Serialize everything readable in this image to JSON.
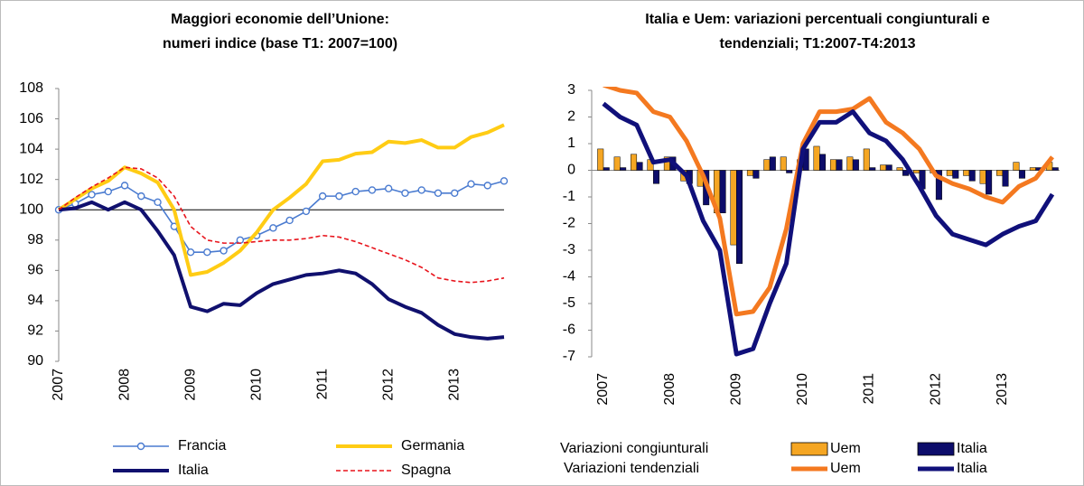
{
  "chart_data": [
    {
      "type": "line",
      "title": [
        "Maggiori economie dell’Unione:",
        "numeri indice (base T1: 2007=100)"
      ],
      "categories": [
        "2007",
        null,
        null,
        null,
        "2008",
        null,
        null,
        null,
        "2009",
        null,
        null,
        null,
        "2010",
        null,
        null,
        null,
        "2011",
        null,
        null,
        null,
        "2012",
        null,
        null,
        null,
        "2013",
        null,
        null,
        null
      ],
      "ylim": [
        90,
        108
      ],
      "yticks": [
        90,
        92,
        94,
        96,
        98,
        100,
        102,
        104,
        106,
        108
      ],
      "hline": 100,
      "series": [
        {
          "name": "Francia",
          "color": "#4a7bd0",
          "marker": "circle",
          "values": [
            100,
            100.4,
            101,
            101.2,
            101.6,
            100.9,
            100.5,
            98.9,
            97.2,
            97.2,
            97.3,
            98.0,
            98.3,
            98.8,
            99.3,
            99.9,
            100.9,
            100.9,
            101.2,
            101.3,
            101.4,
            101.1,
            101.3,
            101.1,
            101.1,
            101.7,
            101.6,
            101.9
          ]
        },
        {
          "name": "Germania",
          "color": "#ffcc14",
          "values": [
            100,
            100.7,
            101.4,
            101.9,
            102.8,
            102.4,
            101.8,
            100,
            95.7,
            95.9,
            96.5,
            97.3,
            98.5,
            100,
            100.8,
            101.7,
            103.2,
            103.3,
            103.7,
            103.8,
            104.5,
            104.4,
            104.6,
            104.1,
            104.1,
            104.8,
            105.1,
            105.6
          ]
        },
        {
          "name": "Italia",
          "color": "#10106e",
          "values": [
            100,
            100.1,
            100.5,
            100,
            100.5,
            100,
            98.6,
            97,
            93.6,
            93.3,
            93.8,
            93.7,
            94.5,
            95.1,
            95.4,
            95.7,
            95.8,
            96.0,
            95.8,
            95.1,
            94.1,
            93.6,
            93.2,
            92.4,
            91.8,
            91.6,
            91.5,
            91.6
          ]
        },
        {
          "name": "Spagna",
          "color": "#e8141c",
          "dash": true,
          "values": [
            100,
            100.8,
            101.5,
            102.1,
            102.8,
            102.7,
            102.1,
            100.9,
            98.9,
            98.0,
            97.8,
            97.8,
            97.9,
            98.0,
            98.0,
            98.1,
            98.3,
            98.2,
            97.9,
            97.5,
            97.1,
            96.7,
            96.2,
            95.5,
            95.3,
            95.2,
            95.3,
            95.5
          ]
        }
      ]
    },
    {
      "type": "combo",
      "title": [
        "Italia e Uem: variazioni percentuali congiunturali e",
        "tendenziali; T1:2007-T4:2013"
      ],
      "categories": [
        "2007",
        null,
        null,
        null,
        "2008",
        null,
        null,
        null,
        "2009",
        null,
        null,
        null,
        "2010",
        null,
        null,
        null,
        "2011",
        null,
        null,
        null,
        "2012",
        null,
        null,
        null,
        "2013",
        null,
        null,
        null
      ],
      "ylim": [
        -7,
        3
      ],
      "yticks": [
        -7,
        -6,
        -5,
        -4,
        -3,
        -2,
        -1,
        0,
        1,
        2,
        3
      ],
      "legend_rows": [
        "Variazioni congiunturali",
        "Variazioni tendenziali"
      ],
      "series": [
        {
          "name": "Uem",
          "kind": "bar",
          "color": "#f5a623",
          "values": [
            0.8,
            0.5,
            0.6,
            0.4,
            0.5,
            -0.4,
            -0.6,
            -1.6,
            -2.8,
            -0.2,
            0.4,
            0.5,
            0.4,
            0.9,
            0.4,
            0.5,
            0.8,
            0.2,
            0.1,
            -0.1,
            -0.1,
            -0.2,
            -0.2,
            -0.5,
            -0.2,
            0.3,
            0.1,
            0.3
          ]
        },
        {
          "name": "Italia",
          "kind": "bar",
          "color": "#0d0d6b",
          "values": [
            0.1,
            0.1,
            0.3,
            -0.5,
            0.5,
            -0.5,
            -1.3,
            -1.6,
            -3.5,
            -0.3,
            0.5,
            -0.1,
            0.8,
            0.6,
            0.4,
            0.4,
            0.1,
            0.2,
            -0.2,
            -0.7,
            -1.1,
            -0.3,
            -0.4,
            -0.9,
            -0.6,
            -0.3,
            0.1,
            0.1
          ]
        },
        {
          "name": "Uem",
          "kind": "line",
          "color": "#f47920",
          "values": [
            3.2,
            3.0,
            2.9,
            2.2,
            2.0,
            1.1,
            -0.2,
            -1.8,
            -5.4,
            -5.3,
            -4.4,
            -2.2,
            1.0,
            2.2,
            2.2,
            2.3,
            2.7,
            1.8,
            1.4,
            0.8,
            -0.2,
            -0.5,
            -0.7,
            -1.0,
            -1.2,
            -0.6,
            -0.3,
            0.5
          ]
        },
        {
          "name": "Italia",
          "kind": "line",
          "color": "#10107a",
          "values": [
            2.5,
            2.0,
            1.7,
            0.3,
            0.4,
            -0.2,
            -1.9,
            -3.0,
            -6.9,
            -6.7,
            -5.0,
            -3.5,
            0.8,
            1.8,
            1.8,
            2.2,
            1.4,
            1.1,
            0.4,
            -0.6,
            -1.7,
            -2.4,
            -2.6,
            -2.8,
            -2.4,
            -2.1,
            -1.9,
            -0.9
          ]
        }
      ]
    }
  ]
}
